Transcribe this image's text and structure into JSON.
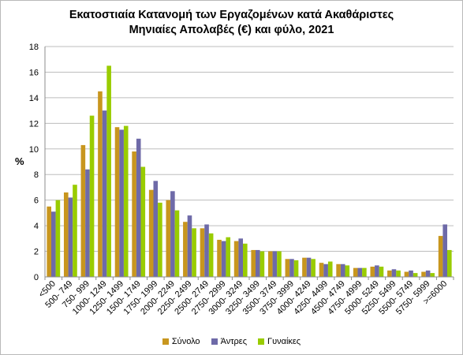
{
  "chart_data": {
    "type": "bar",
    "title_lines": [
      "Εκατοστιαία Κατανομή των Εργαζομένων κατά Ακαθάριστες",
      "Μηνιαίες Απολαβές (€) και φύλο, 2021"
    ],
    "ylabel": "%",
    "xlabel": "",
    "ylim": [
      0,
      18
    ],
    "yticks": [
      0,
      2,
      4,
      6,
      8,
      10,
      12,
      14,
      16,
      18
    ],
    "grid": true,
    "legend_position": "bottom",
    "categories": [
      "<500",
      "500- 749",
      "750- 999",
      "1000- 1249",
      "1250- 1499",
      "1500- 1749",
      "1750- 1999",
      "2000- 2249",
      "2250- 2499",
      "2500- 2749",
      "2750- 2999",
      "3000- 3249",
      "3250- 3499",
      "3500- 3749",
      "3750- 3999",
      "4000- 4249",
      "4250- 4499",
      "4500- 4749",
      "4750- 4999",
      "5000- 5249",
      "5250- 5499",
      "5500- 5749",
      "5750- 5999",
      ">=6000"
    ],
    "series": [
      {
        "name": "Σύνολο",
        "color": "#C8961E",
        "values": [
          5.5,
          6.6,
          10.3,
          14.5,
          11.7,
          9.8,
          6.8,
          6.0,
          4.3,
          3.8,
          2.9,
          2.8,
          2.1,
          2.0,
          1.4,
          1.5,
          1.1,
          1.0,
          0.7,
          0.8,
          0.5,
          0.4,
          0.4,
          3.2
        ]
      },
      {
        "name": "Άντρες",
        "color": "#6E6AA8",
        "values": [
          5.1,
          6.2,
          8.4,
          13.0,
          11.5,
          10.8,
          7.5,
          6.7,
          4.8,
          4.1,
          2.8,
          3.0,
          2.1,
          2.0,
          1.4,
          1.5,
          1.0,
          1.0,
          0.7,
          0.9,
          0.6,
          0.5,
          0.5,
          4.1
        ]
      },
      {
        "name": "Γυναίκες",
        "color": "#99CC00",
        "values": [
          6.0,
          7.2,
          12.6,
          16.5,
          11.8,
          8.6,
          5.8,
          5.2,
          3.8,
          3.4,
          3.1,
          2.6,
          2.0,
          2.0,
          1.3,
          1.4,
          1.2,
          0.9,
          0.7,
          0.8,
          0.5,
          0.3,
          0.3,
          2.1
        ]
      }
    ]
  }
}
